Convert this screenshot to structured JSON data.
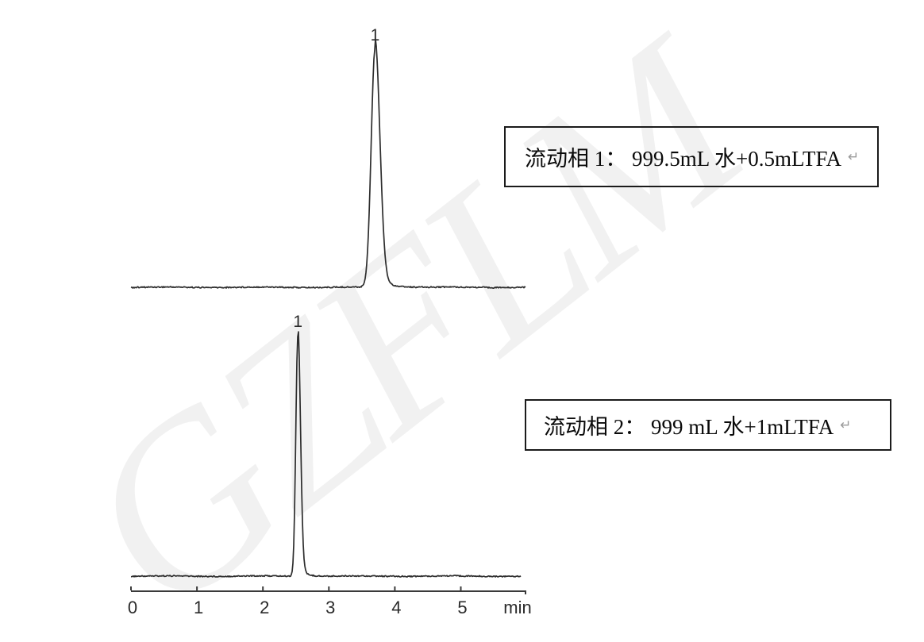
{
  "watermark": {
    "text": "GZFLM",
    "color": "#f1f1f1"
  },
  "annotation_boxes": [
    {
      "name": "mobile-phase-1",
      "text": "流动相 1： 999.5mL 水+0.5mLTFA",
      "return_mark": "↵"
    },
    {
      "name": "mobile-phase-2",
      "text": "流动相 2： 999 mL 水+1mLTFA",
      "return_mark": "↵"
    }
  ],
  "chart_data": [
    {
      "type": "line",
      "name": "chromatogram-mobile-phase-1",
      "title": "",
      "xlabel": "min",
      "x_range": [
        0,
        5.98
      ],
      "x_ticks": [
        "0",
        "1",
        "2",
        "3",
        "4",
        "5"
      ],
      "x_unit_label": "min",
      "grid": false,
      "baseline": "flat with slight noise",
      "peaks": [
        {
          "label": "1",
          "retention_time_min": 3.7,
          "relative_height": 1.0,
          "fwhm_min": 0.15
        }
      ],
      "annotation": "流动相 1： 999.5mL 水+0.5mLTFA"
    },
    {
      "type": "line",
      "name": "chromatogram-mobile-phase-2",
      "title": "",
      "xlabel": "min",
      "x_range": [
        0,
        5.98
      ],
      "x_ticks": [
        "0",
        "1",
        "2",
        "3",
        "4",
        "5"
      ],
      "x_unit_label": "min",
      "grid": false,
      "baseline": "flat with slight noise",
      "peaks": [
        {
          "label": "1",
          "retention_time_min": 2.53,
          "relative_height": 1.0,
          "fwhm_min": 0.08
        }
      ],
      "annotation": "流动相 2： 999 mL 水+1mLTFA"
    }
  ],
  "colors": {
    "trace": "#2d2d2d",
    "axis": "#3a3a3a",
    "tick_label": "#2b2b2b",
    "box_border": "#1b1b1b",
    "watermark": "#f1f1f1"
  }
}
